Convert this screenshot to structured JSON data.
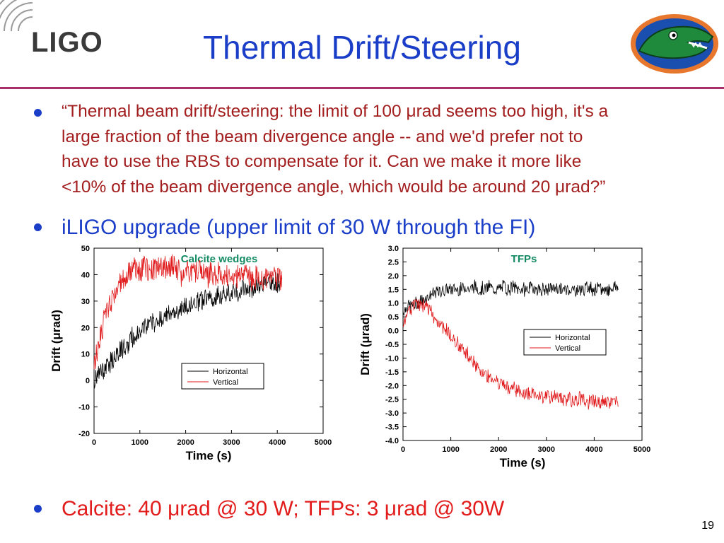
{
  "header": {
    "logo_text": "LIGO",
    "title": "Thermal Drift/Steering",
    "mascot_icon": "gator-logo-icon"
  },
  "bullets": [
    {
      "lines": [
        "“Thermal beam drift/steering: the limit of 100 μrad seems too high, it's a",
        "large fraction of the beam divergence angle -- and we'd prefer not to",
        "have to use the RBS to compensate for it. Can we make it more like",
        "<10% of the beam divergence angle, which would be around 20 μrad?”"
      ]
    },
    {
      "text": "iLIGO upgrade (upper limit of 30 W through the FI)"
    },
    {
      "text": "Calcite: 40 μrad @ 30 W; TFPs: 3 μrad @ 30W"
    }
  ],
  "page_number": "19",
  "colors": {
    "title": "#1a3ec8",
    "quote": "#a31e1e",
    "highlight": "#e21b1b",
    "rule": "#a8306a",
    "chart_label": "#138a62",
    "horizontal_series": "#000000",
    "vertical_series": "#e0191b"
  },
  "chart_data": [
    {
      "type": "line",
      "title": "Calcite wedges",
      "xlabel": "Time (s)",
      "ylabel": "Drift (μrad)",
      "xlim": [
        0,
        5000
      ],
      "ylim": [
        -20,
        50
      ],
      "xticks": [
        0,
        1000,
        2000,
        3000,
        4000,
        5000
      ],
      "yticks": [
        -20,
        -10,
        0,
        10,
        20,
        30,
        40,
        50
      ],
      "legend_position": "lower-right",
      "series": [
        {
          "name": "Horizontal",
          "color": "#000000",
          "x": [
            0,
            100,
            200,
            300,
            400,
            500,
            600,
            700,
            800,
            900,
            1000,
            1100,
            1200,
            1300,
            1400,
            1500,
            1600,
            1700,
            1800,
            1900,
            2000,
            2100,
            2200,
            2300,
            2400,
            2500,
            2600,
            2700,
            2800,
            2900,
            3000,
            3100,
            3200,
            3300,
            3400,
            3500,
            3600,
            3700,
            3800,
            3900,
            4000,
            4100
          ],
          "y": [
            0,
            2,
            4,
            6,
            8,
            10,
            12,
            13,
            15,
            17,
            19,
            20,
            21,
            22,
            23,
            24,
            25,
            25,
            26,
            27,
            28,
            29,
            29,
            30,
            30,
            31,
            31,
            32,
            32,
            33,
            33,
            34,
            34,
            35,
            35,
            35,
            36,
            36,
            37,
            37,
            37,
            36
          ]
        },
        {
          "name": "Vertical",
          "color": "#e0191b",
          "x": [
            0,
            100,
            200,
            300,
            400,
            500,
            600,
            700,
            800,
            900,
            1000,
            1100,
            1200,
            1300,
            1400,
            1500,
            1600,
            1700,
            1800,
            1900,
            2000,
            2100,
            2200,
            2300,
            2400,
            2500,
            2600,
            2700,
            2800,
            2900,
            3000,
            3100,
            3200,
            3300,
            3400,
            3500,
            3600,
            3700,
            3800,
            3900,
            4000,
            4100
          ],
          "y": [
            5,
            14,
            21,
            26,
            30,
            34,
            37,
            40,
            42,
            42,
            41,
            43,
            42,
            42,
            43,
            42,
            43,
            44,
            42,
            40,
            43,
            41,
            40,
            42,
            41,
            40,
            40,
            41,
            39,
            40,
            40,
            39,
            40,
            41,
            39,
            38,
            40,
            38,
            39,
            40,
            38,
            39
          ]
        }
      ]
    },
    {
      "type": "line",
      "title": "TFPs",
      "xlabel": "Time (s)",
      "ylabel": "Drift (μrad)",
      "xlim": [
        0,
        5000
      ],
      "ylim": [
        -4,
        3
      ],
      "xticks": [
        0,
        1000,
        2000,
        3000,
        4000,
        5000
      ],
      "yticks": [
        -4.0,
        -3.5,
        -3.0,
        -2.5,
        -2.0,
        -1.5,
        -1.0,
        -0.5,
        0.0,
        0.5,
        1.0,
        1.5,
        2.0,
        2.5,
        3.0
      ],
      "legend_position": "middle-right",
      "series": [
        {
          "name": "Horizontal",
          "color": "#000000",
          "x": [
            0,
            100,
            200,
            300,
            400,
            500,
            600,
            700,
            800,
            900,
            1000,
            1100,
            1200,
            1300,
            1400,
            1500,
            1600,
            1700,
            1800,
            1900,
            2000,
            2100,
            2200,
            2300,
            2400,
            2500,
            2600,
            2700,
            2800,
            2900,
            3000,
            3100,
            3200,
            3300,
            3400,
            3500,
            3600,
            3700,
            3800,
            3900,
            4000,
            4100,
            4200,
            4300,
            4400,
            4500
          ],
          "y": [
            0.7,
            0.9,
            0.9,
            1.0,
            1.1,
            1.2,
            1.3,
            1.4,
            1.4,
            1.5,
            1.5,
            1.5,
            1.5,
            1.6,
            1.5,
            1.6,
            1.5,
            1.5,
            1.6,
            1.5,
            1.5,
            1.6,
            1.5,
            1.6,
            1.5,
            1.5,
            1.5,
            1.6,
            1.5,
            1.5,
            1.5,
            1.5,
            1.6,
            1.5,
            1.5,
            1.5,
            1.5,
            1.5,
            1.5,
            1.6,
            1.5,
            1.5,
            1.5,
            1.5,
            1.6,
            1.6
          ]
        },
        {
          "name": "Vertical",
          "color": "#e0191b",
          "x": [
            0,
            100,
            200,
            300,
            400,
            500,
            600,
            700,
            800,
            900,
            1000,
            1100,
            1200,
            1300,
            1400,
            1500,
            1600,
            1700,
            1800,
            1900,
            2000,
            2100,
            2200,
            2300,
            2400,
            2500,
            2600,
            2700,
            2800,
            2900,
            3000,
            3100,
            3200,
            3300,
            3400,
            3500,
            3600,
            3700,
            3800,
            3900,
            4000,
            4100,
            4200,
            4300,
            4400,
            4500
          ],
          "y": [
            0.3,
            0.7,
            0.9,
            1.0,
            0.9,
            0.8,
            0.6,
            0.4,
            0.2,
            0.0,
            -0.2,
            -0.4,
            -0.6,
            -0.8,
            -1.0,
            -1.2,
            -1.4,
            -1.5,
            -1.7,
            -1.8,
            -1.9,
            -2.0,
            -2.1,
            -2.1,
            -2.2,
            -2.2,
            -2.3,
            -2.3,
            -2.3,
            -2.4,
            -2.4,
            -2.4,
            -2.4,
            -2.5,
            -2.5,
            -2.5,
            -2.5,
            -2.5,
            -2.5,
            -2.6,
            -2.6,
            -2.6,
            -2.6,
            -2.6,
            -2.6,
            -2.7
          ]
        }
      ]
    }
  ]
}
